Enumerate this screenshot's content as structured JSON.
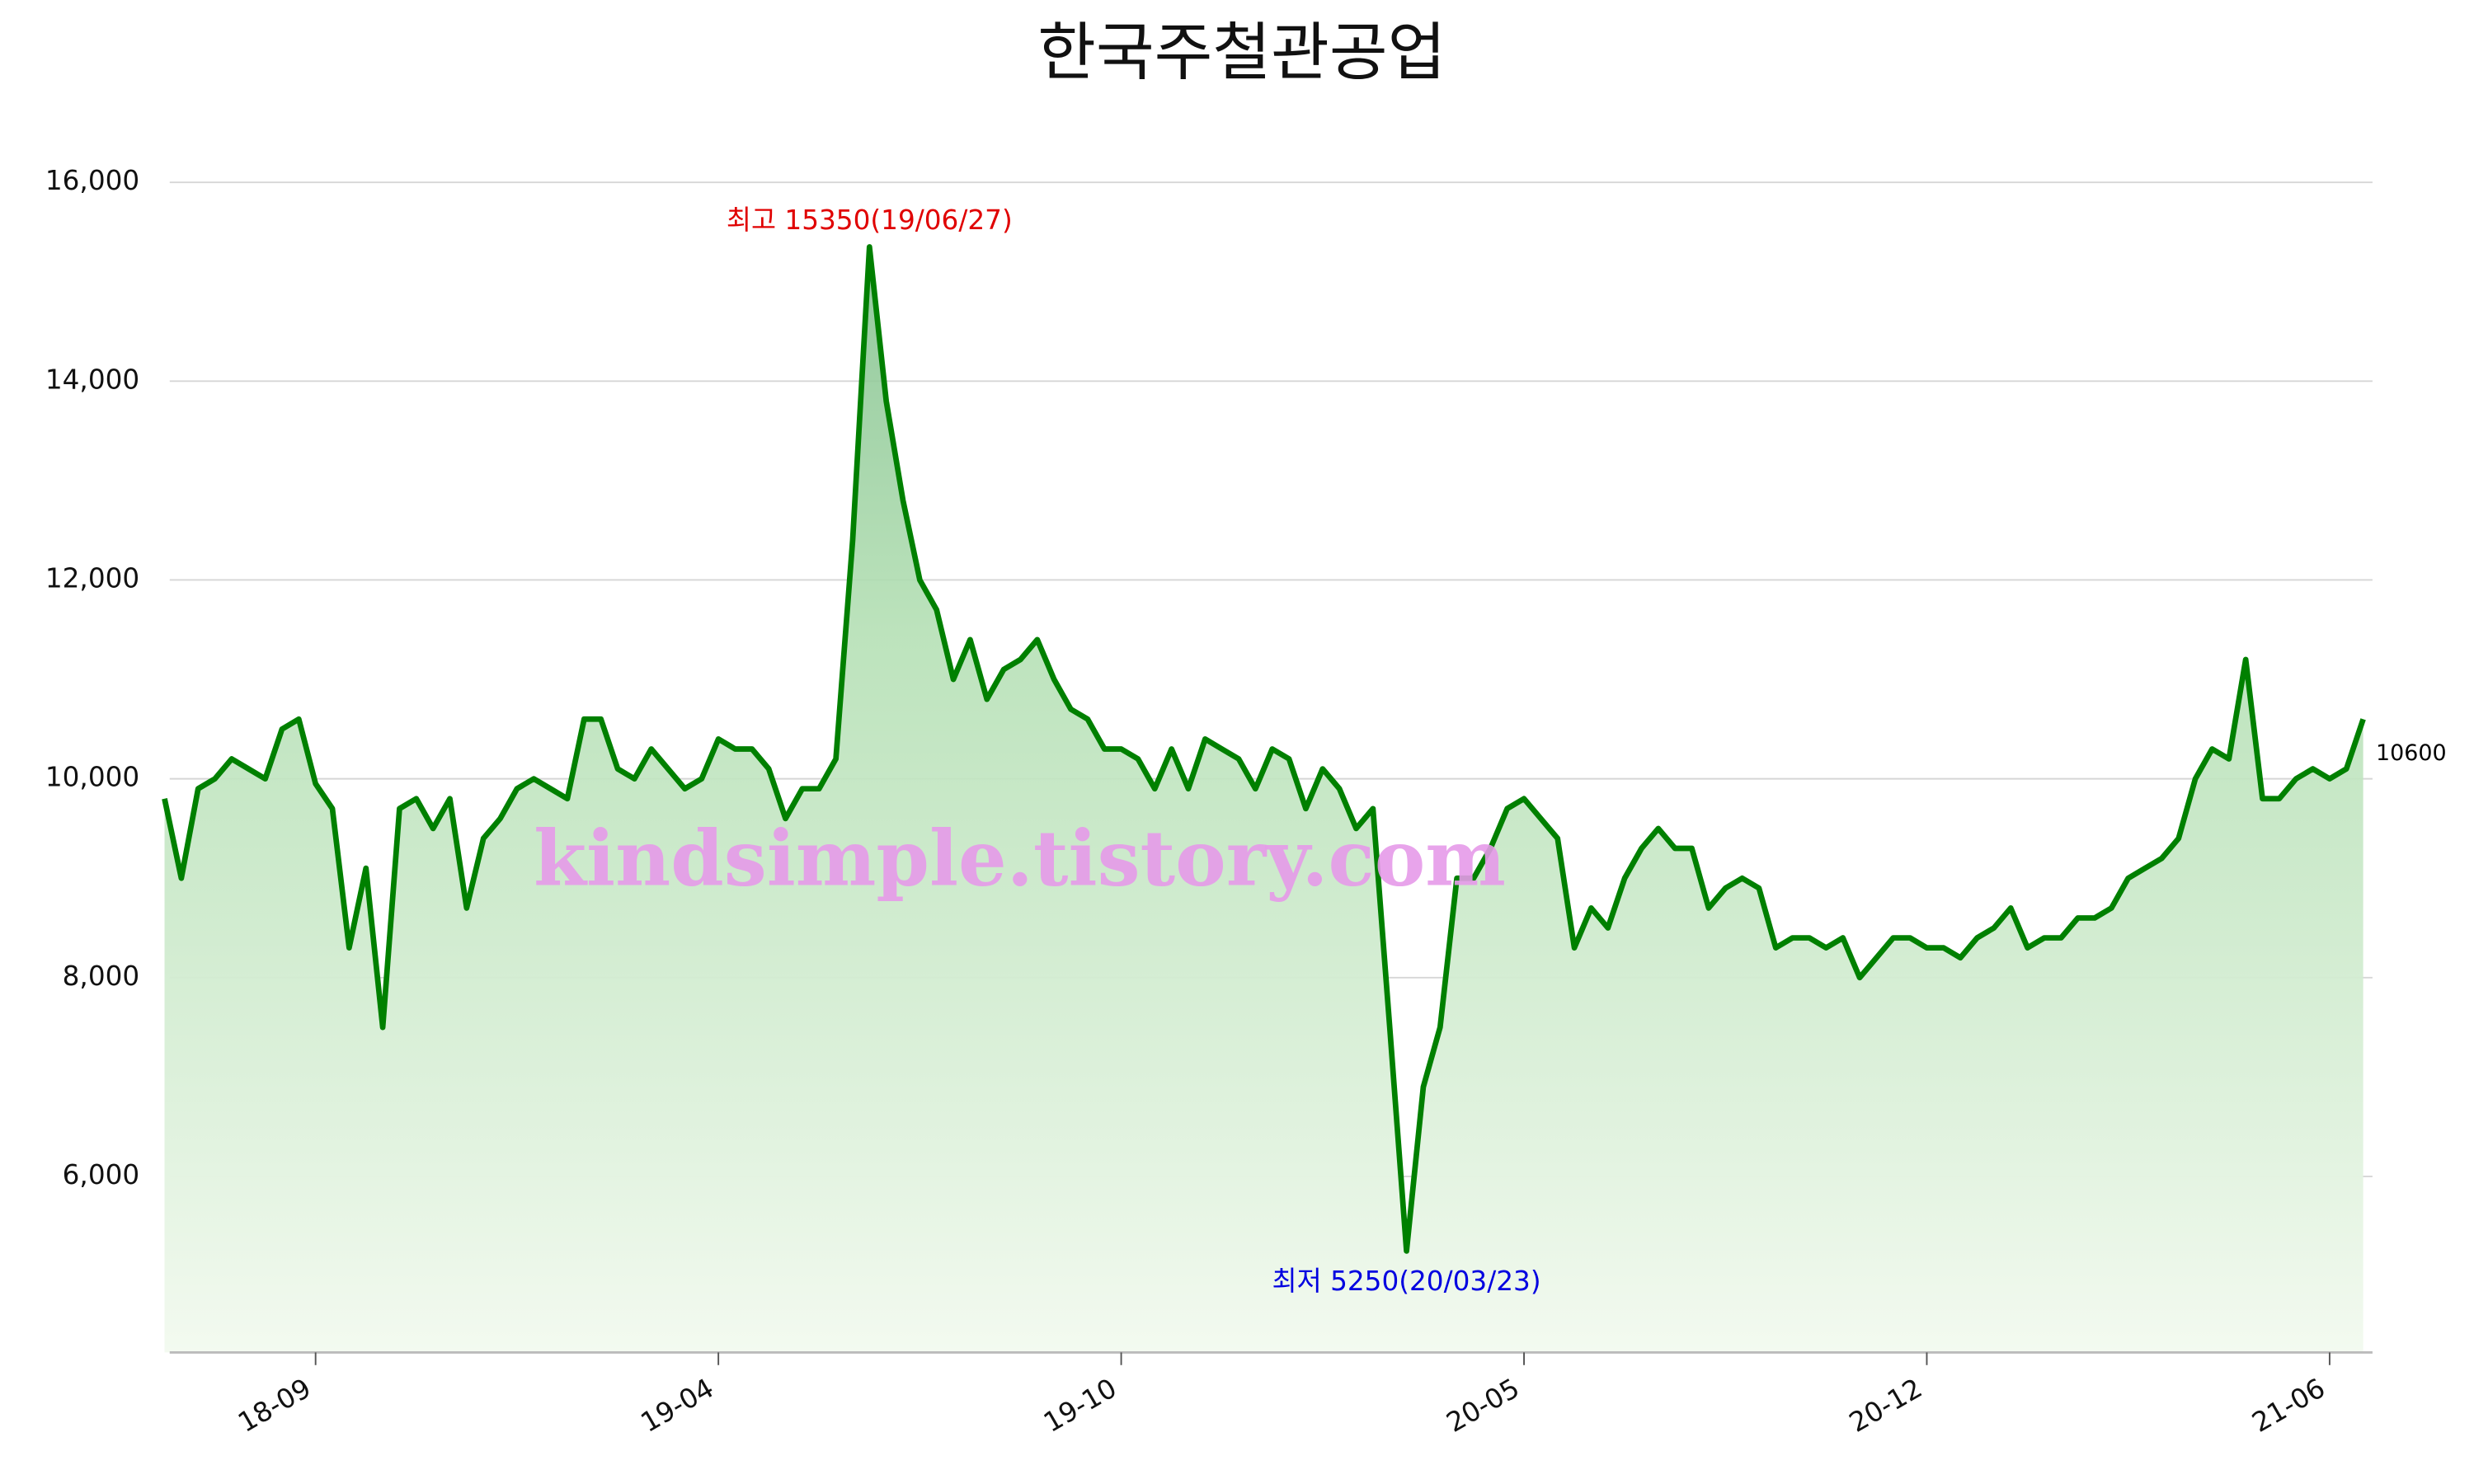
{
  "chart_data": {
    "type": "line",
    "title": "한국주철관공업",
    "watermark": "kindsimple.tistory.com",
    "categories": [
      null,
      null,
      null,
      null,
      null,
      null,
      null,
      null,
      null,
      "18-09",
      null,
      null,
      null,
      null,
      null,
      null,
      null,
      null,
      null,
      null,
      null,
      null,
      null,
      null,
      null,
      null,
      null,
      null,
      null,
      null,
      null,
      null,
      null,
      "19-04",
      null,
      null,
      null,
      null,
      null,
      null,
      null,
      null,
      null,
      null,
      null,
      null,
      null,
      null,
      null,
      null,
      null,
      null,
      null,
      null,
      null,
      null,
      null,
      "19-10",
      null,
      null,
      null,
      null,
      null,
      null,
      null,
      null,
      null,
      null,
      null,
      null,
      null,
      null,
      null,
      null,
      null,
      null,
      null,
      null,
      null,
      null,
      null,
      "20-05",
      null,
      null,
      null,
      null,
      null,
      null,
      null,
      null,
      null,
      null,
      null,
      null,
      null,
      null,
      null,
      null,
      null,
      null,
      null,
      null,
      null,
      null,
      null,
      "20-12",
      null,
      null,
      null,
      null,
      null,
      null,
      null,
      null,
      null,
      null,
      null,
      null,
      null,
      null,
      null,
      null,
      null,
      null,
      null,
      null,
      null,
      null,
      null,
      "21-06",
      null,
      null
    ],
    "series": [
      {
        "name": "한국주철관공업",
        "color": "#008000",
        "values": [
          9800,
          9000,
          9900,
          10000,
          10200,
          10100,
          10000,
          10500,
          10600,
          9950,
          9700,
          8300,
          9100,
          7500,
          9700,
          9800,
          9500,
          9800,
          8700,
          9400,
          9600,
          9900,
          10000,
          9900,
          9800,
          10600,
          10600,
          10100,
          10000,
          10300,
          10100,
          9900,
          10000,
          10400,
          10300,
          10300,
          10100,
          9600,
          9900,
          9900,
          10200,
          12400,
          15350,
          13800,
          12800,
          12000,
          11700,
          11000,
          11400,
          10800,
          11100,
          11200,
          11400,
          11000,
          10700,
          10600,
          10300,
          10300,
          10200,
          9900,
          10300,
          9900,
          10400,
          10300,
          10200,
          9900,
          10300,
          10200,
          9700,
          10100,
          9900,
          9500,
          9700,
          7500,
          5250,
          6900,
          7500,
          9000,
          9000,
          9300,
          9700,
          9800,
          9600,
          9400,
          8300,
          8700,
          8500,
          9000,
          9300,
          9500,
          9300,
          9300,
          8700,
          8900,
          9000,
          8900,
          8300,
          8400,
          8400,
          8300,
          8400,
          8000,
          8200,
          8400,
          8400,
          8300,
          8300,
          8200,
          8400,
          8500,
          8700,
          8300,
          8400,
          8400,
          8600,
          8600,
          8700,
          9000,
          9100,
          9200,
          9400,
          10000,
          10300,
          10200,
          11200,
          9800,
          9800,
          10000,
          10100,
          10000,
          10100,
          10600
        ]
      }
    ],
    "ylim": [
      4230,
      16000
    ],
    "yticks": [
      {
        "value": 6000,
        "label": "6,000"
      },
      {
        "value": 8000,
        "label": "8,000"
      },
      {
        "value": 10000,
        "label": "10,000"
      },
      {
        "value": 12000,
        "label": "12,000"
      },
      {
        "value": 14000,
        "label": "14,000"
      },
      {
        "value": 16000,
        "label": "16,000"
      }
    ],
    "grid": true,
    "annotations": [
      {
        "text": "최고 15350(19/06/27)",
        "color": "#e00000",
        "at": "max"
      },
      {
        "text": "최저 5250(20/03/23)",
        "color": "#0000e0",
        "at": "min"
      },
      {
        "text": "10600",
        "color": "#000000",
        "at": "last"
      }
    ]
  }
}
